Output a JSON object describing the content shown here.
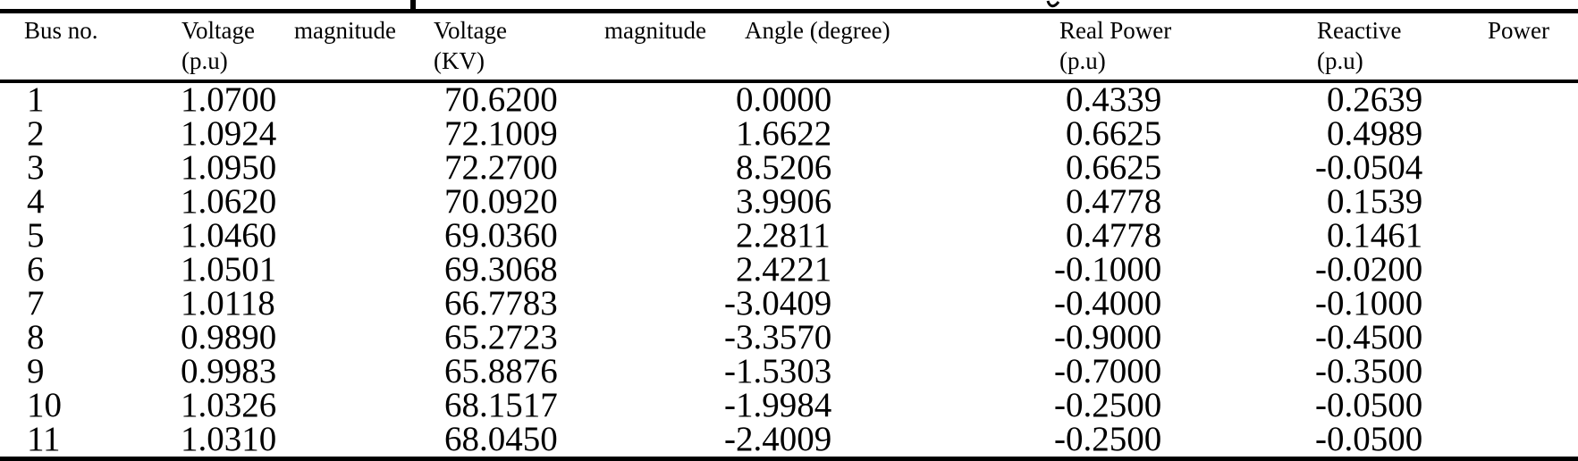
{
  "styles": {
    "background": "#ffffff",
    "text_color": "#000000",
    "rule_color": "#000000"
  },
  "caption_fragments": {
    "note": "bottom tips of two letters from a caption line cropped at the top edge"
  },
  "table": {
    "columns": [
      {
        "id": "bus-no",
        "label": "Bus no."
      },
      {
        "id": "voltage-magnitude-pu",
        "words": [
          "Voltage",
          "magnitude"
        ],
        "unit": "(p.u)"
      },
      {
        "id": "voltage-magnitude-kv",
        "words": [
          "Voltage",
          "magnitude"
        ],
        "unit": "(KV)"
      },
      {
        "id": "angle-degree",
        "label": "Angle (degree)"
      },
      {
        "id": "real-power-pu",
        "label": "Real Power",
        "unit": "(p.u)"
      },
      {
        "id": "reactive-power-pu",
        "words": [
          "Reactive",
          "Power"
        ],
        "unit": "(p.u)"
      }
    ],
    "rows": [
      [
        "1",
        "1.0700",
        "70.6200",
        "0.0000",
        "0.4339",
        "0.2639"
      ],
      [
        "2",
        "1.0924",
        "72.1009",
        "1.6622",
        "0.6625",
        "0.4989"
      ],
      [
        "3",
        "1.0950",
        "72.2700",
        "8.5206",
        "0.6625",
        "-0.0504"
      ],
      [
        "4",
        "1.0620",
        "70.0920",
        "3.9906",
        "0.4778",
        "0.1539"
      ],
      [
        "5",
        "1.0460",
        "69.0360",
        "2.2811",
        "0.4778",
        "0.1461"
      ],
      [
        "6",
        "1.0501",
        "69.3068",
        "2.4221",
        "-0.1000",
        "-0.0200"
      ],
      [
        "7",
        "1.0118",
        "66.7783",
        "-3.0409",
        "-0.4000",
        "-0.1000"
      ],
      [
        "8",
        "0.9890",
        "65.2723",
        "-3.3570",
        "-0.9000",
        "-0.4500"
      ],
      [
        "9",
        "0.9983",
        "65.8876",
        "-1.5303",
        "-0.7000",
        "-0.3500"
      ],
      [
        "10",
        "1.0326",
        "68.1517",
        "-1.9984",
        "-0.2500",
        "-0.0500"
      ],
      [
        "11",
        "1.0310",
        "68.0450",
        "-2.4009",
        "-0.2500",
        "-0.0500"
      ]
    ]
  }
}
